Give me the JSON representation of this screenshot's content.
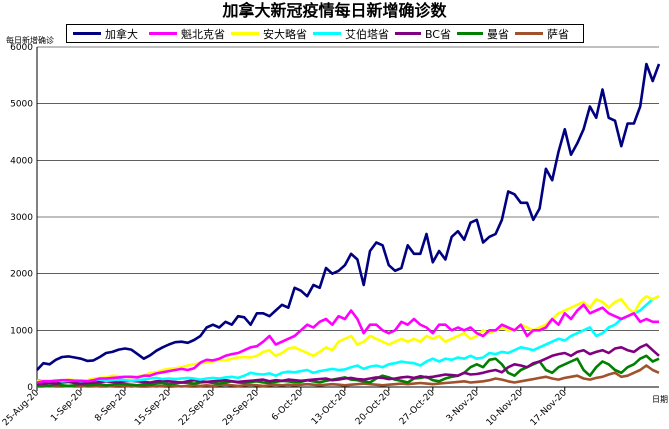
{
  "chart_data": {
    "type": "line",
    "title": "加拿大新冠疫情每日新增确诊数",
    "ylabel": "每日新增确诊",
    "xlabel": "日期",
    "ylim": [
      0,
      6000
    ],
    "yticks": [
      "0",
      "1000",
      "2000",
      "3000",
      "4000",
      "5000",
      "6000"
    ],
    "xticks": [
      {
        "label": "25-Aug-20",
        "day": 0
      },
      {
        "label": "1-Sep-20",
        "day": 7
      },
      {
        "label": "8-Sep-20",
        "day": 14
      },
      {
        "label": "15-Sep-20",
        "day": 21
      },
      {
        "label": "22-Sep-20",
        "day": 28
      },
      {
        "label": "29-Sep-20",
        "day": 35
      },
      {
        "label": "6-Oct-20",
        "day": 42
      },
      {
        "label": "13-Oct-20",
        "day": 49
      },
      {
        "label": "20-Oct-20",
        "day": 56
      },
      {
        "label": "27-Oct-20",
        "day": 63
      },
      {
        "label": "3-Nov-20",
        "day": 70
      },
      {
        "label": "10-Nov-20",
        "day": 77
      },
      {
        "label": "17-Nov-20",
        "day": 84
      }
    ],
    "grid": true,
    "legend_position": "top",
    "series": [
      {
        "name": "加拿大",
        "color": "#000080",
        "values": [
          300,
          420,
          400,
          480,
          530,
          540,
          520,
          500,
          460,
          470,
          530,
          600,
          620,
          660,
          680,
          660,
          580,
          500,
          560,
          640,
          700,
          750,
          790,
          800,
          780,
          830,
          900,
          1050,
          1100,
          1050,
          1150,
          1100,
          1250,
          1230,
          1100,
          1300,
          1300,
          1250,
          1350,
          1450,
          1400,
          1750,
          1700,
          1600,
          1800,
          1750,
          2100,
          2000,
          2050,
          2150,
          2350,
          2250,
          1800,
          2400,
          2550,
          2500,
          2150,
          2050,
          2100,
          2500,
          2350,
          2350,
          2700,
          2200,
          2400,
          2250,
          2650,
          2750,
          2600,
          2900,
          2950,
          2550,
          2650,
          2700,
          2950,
          3450,
          3400,
          3250,
          3250,
          2950,
          3150,
          3850,
          3650,
          4150,
          4550,
          4100,
          4300,
          4550,
          4950,
          4750,
          5250,
          4750,
          4700,
          4250,
          4650,
          4650,
          4950,
          5700,
          5400,
          5700
        ]
      },
      {
        "name": "魁北克省",
        "color": "#ff00ff",
        "values": [
          80,
          100,
          100,
          110,
          120,
          120,
          110,
          110,
          100,
          120,
          150,
          150,
          160,
          170,
          180,
          180,
          170,
          200,
          200,
          240,
          260,
          280,
          300,
          320,
          300,
          330,
          430,
          480,
          470,
          500,
          550,
          580,
          600,
          650,
          700,
          720,
          800,
          900,
          750,
          800,
          850,
          900,
          1000,
          1100,
          1050,
          1150,
          1200,
          1100,
          1250,
          1200,
          1350,
          1200,
          950,
          1100,
          1100,
          1000,
          950,
          1000,
          1150,
          1100,
          1200,
          1100,
          1050,
          950,
          1100,
          1100,
          1000,
          1050,
          1000,
          1050,
          950,
          900,
          1000,
          1000,
          1100,
          1050,
          1000,
          1100,
          900,
          1000,
          1000,
          1050,
          1200,
          1100,
          1300,
          1200,
          1350,
          1450,
          1300,
          1350,
          1400,
          1300,
          1250,
          1200,
          1250,
          1300,
          1150,
          1200,
          1150,
          1150
        ]
      },
      {
        "name": "安大略省",
        "color": "#ffff00",
        "values": [
          100,
          110,
          100,
          120,
          110,
          130,
          120,
          110,
          120,
          150,
          160,
          170,
          200,
          190,
          180,
          170,
          190,
          200,
          250,
          260,
          300,
          320,
          330,
          350,
          380,
          400,
          420,
          430,
          450,
          480,
          470,
          500,
          520,
          530,
          520,
          550,
          620,
          650,
          550,
          600,
          680,
          700,
          650,
          600,
          550,
          620,
          700,
          650,
          800,
          850,
          900,
          750,
          800,
          900,
          850,
          800,
          750,
          800,
          850,
          800,
          850,
          800,
          900,
          850,
          900,
          800,
          850,
          900,
          950,
          850,
          900,
          1000,
          950,
          1000,
          1050,
          1000,
          1000,
          1100,
          1050,
          1000,
          1050,
          1100,
          1200,
          1300,
          1350,
          1400,
          1450,
          1500,
          1400,
          1550,
          1500,
          1400,
          1500,
          1550,
          1400,
          1300,
          1500,
          1600,
          1550,
          1600
        ]
      },
      {
        "name": "艾伯塔省",
        "color": "#00ffff",
        "values": [
          120,
          110,
          100,
          120,
          100,
          110,
          120,
          100,
          110,
          120,
          130,
          110,
          120,
          130,
          120,
          110,
          120,
          130,
          150,
          160,
          140,
          150,
          140,
          150,
          160,
          150,
          130,
          150,
          160,
          150,
          170,
          180,
          160,
          200,
          250,
          230,
          220,
          240,
          200,
          250,
          270,
          260,
          280,
          300,
          250,
          280,
          300,
          320,
          300,
          310,
          350,
          380,
          320,
          360,
          380,
          350,
          400,
          420,
          450,
          430,
          420,
          380,
          450,
          500,
          450,
          500,
          480,
          520,
          500,
          550,
          500,
          520,
          600,
          580,
          620,
          600,
          650,
          700,
          680,
          650,
          700,
          750,
          800,
          850,
          820,
          900,
          950,
          1000,
          1050,
          900,
          950,
          1050,
          1100,
          1200,
          1250,
          1300,
          1350,
          1450,
          1550,
          1600
        ]
      },
      {
        "name": "BC省",
        "color": "#800080",
        "values": [
          50,
          60,
          70,
          60,
          80,
          90,
          70,
          60,
          70,
          80,
          90,
          100,
          90,
          80,
          100,
          110,
          100,
          90,
          80,
          100,
          110,
          100,
          90,
          80,
          100,
          120,
          100,
          90,
          100,
          110,
          120,
          100,
          90,
          100,
          110,
          120,
          130,
          100,
          120,
          110,
          130,
          120,
          110,
          120,
          130,
          140,
          150,
          120,
          130,
          150,
          160,
          140,
          130,
          150,
          170,
          160,
          140,
          150,
          170,
          180,
          160,
          190,
          170,
          180,
          200,
          220,
          210,
          200,
          250,
          220,
          230,
          250,
          280,
          300,
          260,
          350,
          400,
          380,
          350,
          420,
          450,
          500,
          550,
          580,
          600,
          550,
          620,
          650,
          580,
          620,
          650,
          600,
          680,
          700,
          650,
          620,
          700,
          750,
          650,
          550
        ]
      },
      {
        "name": "曼省",
        "color": "#008000",
        "values": [
          20,
          30,
          20,
          40,
          30,
          20,
          30,
          50,
          30,
          40,
          50,
          30,
          40,
          60,
          50,
          40,
          30,
          50,
          40,
          60,
          70,
          50,
          60,
          80,
          70,
          60,
          80,
          90,
          70,
          60,
          80,
          100,
          80,
          70,
          90,
          100,
          80,
          70,
          90,
          110,
          100,
          80,
          90,
          120,
          100,
          80,
          110,
          130,
          150,
          170,
          130,
          120,
          100,
          80,
          150,
          200,
          170,
          130,
          110,
          80,
          150,
          160,
          180,
          120,
          100,
          150,
          180,
          200,
          250,
          350,
          400,
          350,
          480,
          500,
          400,
          250,
          200,
          300,
          350,
          400,
          450,
          300,
          250,
          350,
          400,
          450,
          500,
          300,
          200,
          350,
          450,
          400,
          300,
          250,
          350,
          400,
          500,
          550,
          450,
          500
        ]
      },
      {
        "name": "萨省",
        "color": "#a0522d",
        "values": [
          10,
          10,
          20,
          10,
          10,
          20,
          10,
          10,
          20,
          20,
          10,
          10,
          20,
          30,
          20,
          10,
          20,
          30,
          20,
          10,
          20,
          30,
          20,
          10,
          20,
          30,
          20,
          30,
          20,
          30,
          40,
          30,
          20,
          30,
          40,
          30,
          20,
          30,
          40,
          30,
          40,
          30,
          40,
          50,
          40,
          30,
          40,
          50,
          40,
          30,
          40,
          50,
          60,
          50,
          40,
          30,
          40,
          50,
          60,
          50,
          60,
          70,
          60,
          50,
          60,
          70,
          80,
          90,
          100,
          80,
          90,
          100,
          120,
          150,
          130,
          100,
          80,
          100,
          120,
          140,
          160,
          180,
          150,
          130,
          160,
          180,
          200,
          150,
          130,
          160,
          180,
          220,
          250,
          180,
          200,
          250,
          300,
          380,
          300,
          250
        ]
      }
    ]
  }
}
